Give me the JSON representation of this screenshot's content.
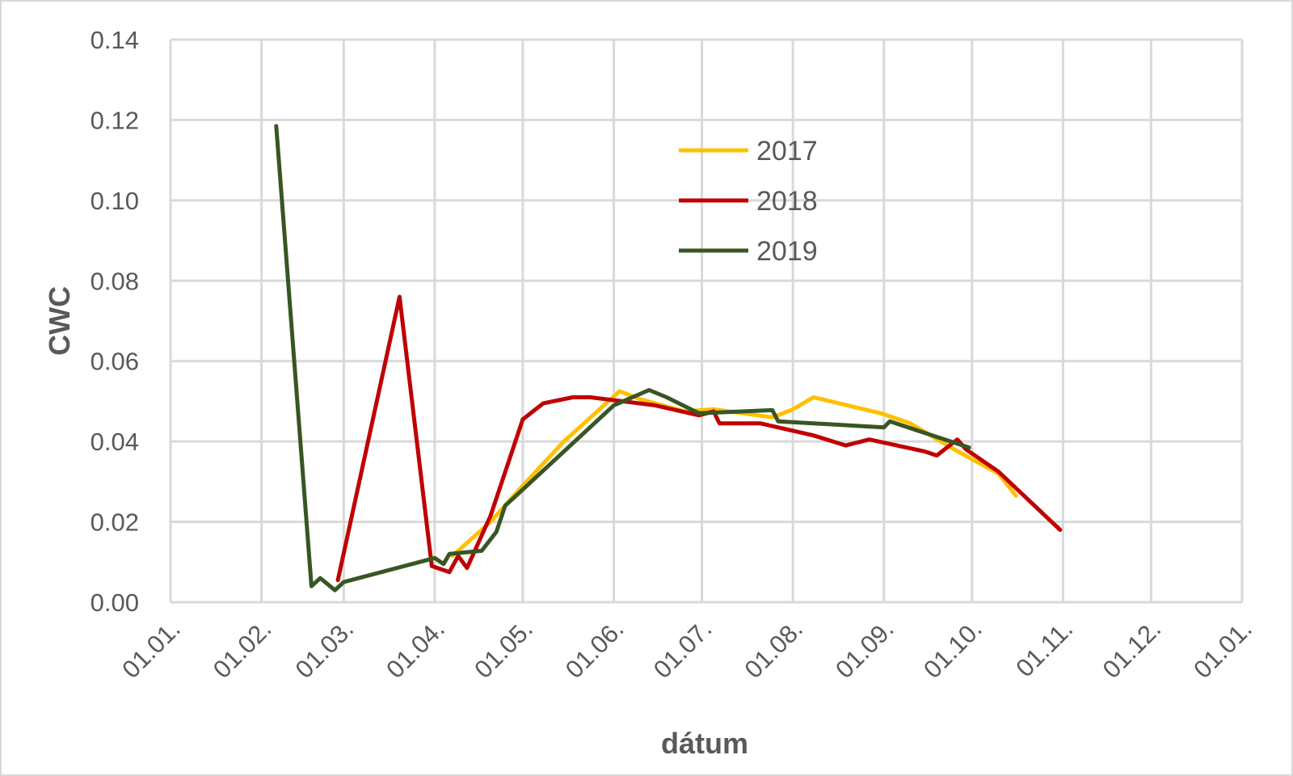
{
  "chart_data": {
    "type": "line",
    "title": "",
    "xlabel": "dátum",
    "ylabel": "CWC",
    "ylim": [
      0,
      0.14
    ],
    "xlim": [
      "01.01.",
      "01.01. (next year)"
    ],
    "x_unit": "day of year",
    "grid": true,
    "legend_position": "top-center",
    "yticks": [
      "0.00",
      "0.02",
      "0.04",
      "0.06",
      "0.08",
      "0.10",
      "0.12",
      "0.14"
    ],
    "xticks": [
      "01.01.",
      "01.02.",
      "01.03.",
      "01.04.",
      "01.05.",
      "01.06.",
      "01.07.",
      "01.08.",
      "01.09.",
      "01.10.",
      "01.11.",
      "01.12.",
      "01.01."
    ],
    "series": [
      {
        "name": "2017",
        "color": "#ffc000",
        "points": [
          [
            "07.04.",
            0.0115
          ],
          [
            "20.04.",
            0.02
          ],
          [
            "01.05.",
            0.029
          ],
          [
            "15.05.",
            0.04
          ],
          [
            "03.06.",
            0.0525
          ],
          [
            "10.06.",
            0.0505
          ],
          [
            "25.06.",
            0.0475
          ],
          [
            "05.07.",
            0.048
          ],
          [
            "15.07.",
            0.047
          ],
          [
            "25.07.",
            0.046
          ],
          [
            "01.08.",
            0.048
          ],
          [
            "08.08.",
            0.051
          ],
          [
            "31.08.",
            0.047
          ],
          [
            "10.09.",
            0.0445
          ],
          [
            "25.09.",
            0.038
          ],
          [
            "10.10.",
            0.032
          ],
          [
            "16.10.",
            0.0265
          ]
        ]
      },
      {
        "name": "2018",
        "color": "#c00000",
        "points": [
          [
            "27.02.",
            0.0055
          ],
          [
            "20.03.",
            0.076
          ],
          [
            "31.03.",
            0.009
          ],
          [
            "06.04.",
            0.0075
          ],
          [
            "09.04.",
            0.0115
          ],
          [
            "12.04.",
            0.0085
          ],
          [
            "20.04.",
            0.0215
          ],
          [
            "01.05.",
            0.0455
          ],
          [
            "08.05.",
            0.0495
          ],
          [
            "18.05.",
            0.051
          ],
          [
            "24.05.",
            0.051
          ],
          [
            "15.06.",
            0.049
          ],
          [
            "30.06.",
            0.0465
          ],
          [
            "05.07.",
            0.0475
          ],
          [
            "07.07.",
            0.0445
          ],
          [
            "21.07.",
            0.0445
          ],
          [
            "08.08.",
            0.0415
          ],
          [
            "19.08.",
            0.039
          ],
          [
            "27.08.",
            0.0405
          ],
          [
            "15.09.",
            0.0375
          ],
          [
            "19.09.",
            0.0365
          ],
          [
            "26.09.",
            0.0405
          ],
          [
            "29.09.",
            0.038
          ],
          [
            "10.10.",
            0.0325
          ],
          [
            "31.10.",
            0.018
          ]
        ]
      },
      {
        "name": "2019",
        "color": "#375623",
        "points": [
          [
            "06.02.",
            0.1185
          ],
          [
            "18.02.",
            0.004
          ],
          [
            "21.02.",
            0.006
          ],
          [
            "26.02.",
            0.003
          ],
          [
            "01.03.",
            0.005
          ],
          [
            "01.04.",
            0.011
          ],
          [
            "04.04.",
            0.0095
          ],
          [
            "06.04.",
            0.012
          ],
          [
            "17.04.",
            0.0128
          ],
          [
            "22.04.",
            0.0175
          ],
          [
            "25.04.",
            0.024
          ],
          [
            "01.06.",
            0.049
          ],
          [
            "13.06.",
            0.0528
          ],
          [
            "19.06.",
            0.051
          ],
          [
            "30.06.",
            0.047
          ],
          [
            "25.07.",
            0.0478
          ],
          [
            "27.07.",
            0.045
          ],
          [
            "01.09.",
            0.0435
          ],
          [
            "03.09.",
            0.045
          ],
          [
            "30.09.",
            0.0385
          ]
        ]
      }
    ]
  }
}
